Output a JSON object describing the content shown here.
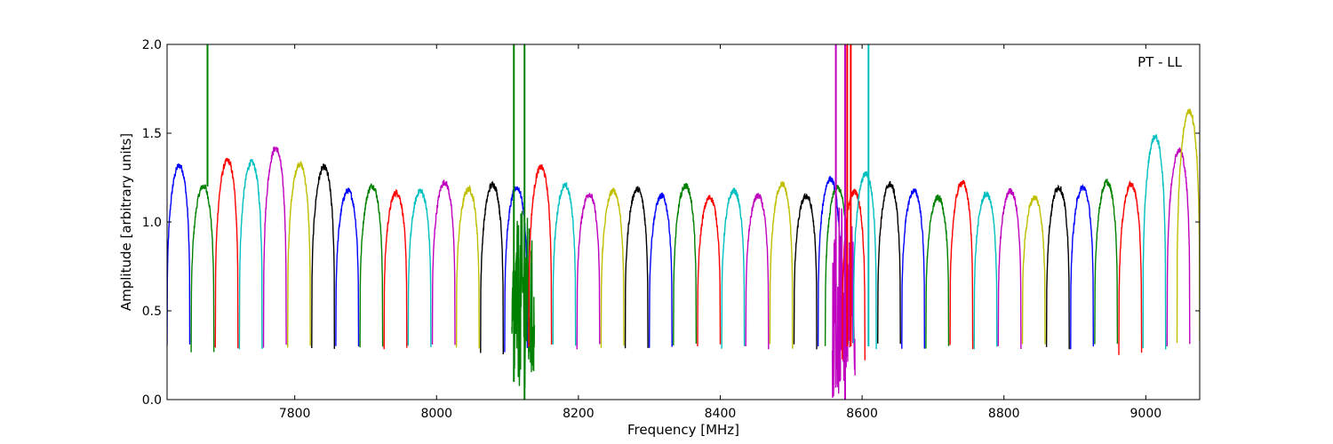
{
  "chart_data": {
    "type": "line",
    "annotation": "PT - LL",
    "xlabel": "Frequency [MHz]",
    "ylabel": "Amplitude [arbitrary units]",
    "xlim": [
      7620,
      9076
    ],
    "ylim": [
      0.0,
      2.0
    ],
    "xticks": [
      7800,
      8000,
      8200,
      8400,
      8600,
      8800,
      9000
    ],
    "xtick_labels": [
      "7800",
      "8000",
      "8200",
      "8400",
      "8600",
      "8800",
      "9000"
    ],
    "yticks": [
      0.0,
      0.5,
      1.0,
      1.5,
      2.0
    ],
    "ytick_labels": [
      "0.0",
      "0.5",
      "1.0",
      "1.5",
      "2.0"
    ],
    "grid": false,
    "legend": "none",
    "color_cycle": [
      "#0000ff",
      "#008000",
      "#ff0000",
      "#00bfbf",
      "#bf00bf",
      "#bfbf00",
      "#000000"
    ],
    "channel_width_mhz": 32,
    "series": [
      {
        "band_mhz": [
          7620,
          7652
        ],
        "color": "#0000ff",
        "min": 0.3,
        "peak": 1.37
      },
      {
        "band_mhz": [
          7654,
          7686
        ],
        "color": "#008000",
        "min": 0.26,
        "peak": 1.25
      },
      {
        "band_mhz": [
          7688,
          7720
        ],
        "color": "#ff0000",
        "min": 0.3,
        "peak": 1.4
      },
      {
        "band_mhz": [
          7722,
          7754
        ],
        "color": "#00bfbf",
        "min": 0.3,
        "peak": 1.39
      },
      {
        "band_mhz": [
          7756,
          7788
        ],
        "color": "#bf00bf",
        "min": 0.3,
        "peak": 1.47
      },
      {
        "band_mhz": [
          7790,
          7822
        ],
        "color": "#bfbf00",
        "min": 0.3,
        "peak": 1.38
      },
      {
        "band_mhz": [
          7824,
          7856
        ],
        "color": "#000000",
        "min": 0.3,
        "peak": 1.36
      },
      {
        "band_mhz": [
          7858,
          7890
        ],
        "color": "#0000ff",
        "min": 0.3,
        "peak": 1.22
      },
      {
        "band_mhz": [
          7892,
          7924
        ],
        "color": "#008000",
        "min": 0.3,
        "peak": 1.25
      },
      {
        "band_mhz": [
          7926,
          7958
        ],
        "color": "#ff0000",
        "min": 0.3,
        "peak": 1.21
      },
      {
        "band_mhz": [
          7960,
          7992
        ],
        "color": "#00bfbf",
        "min": 0.3,
        "peak": 1.22
      },
      {
        "band_mhz": [
          7994,
          8026
        ],
        "color": "#bf00bf",
        "min": 0.3,
        "peak": 1.27
      },
      {
        "band_mhz": [
          8028,
          8060
        ],
        "color": "#bfbf00",
        "min": 0.3,
        "peak": 1.23
      },
      {
        "band_mhz": [
          8062,
          8094
        ],
        "color": "#000000",
        "min": 0.26,
        "peak": 1.26
      },
      {
        "band_mhz": [
          8096,
          8128
        ],
        "color": "#0000ff",
        "min": 0.28,
        "peak": 1.24
      },
      {
        "band_mhz": [
          8106,
          8138
        ],
        "color": "#008000",
        "min": 0.06,
        "peak": 1.07
      },
      {
        "band_mhz": [
          8130,
          8162
        ],
        "color": "#ff0000",
        "min": 0.3,
        "peak": 1.36
      },
      {
        "band_mhz": [
          8164,
          8196
        ],
        "color": "#00bfbf",
        "min": 0.3,
        "peak": 1.25
      },
      {
        "band_mhz": [
          8198,
          8230
        ],
        "color": "#bf00bf",
        "min": 0.3,
        "peak": 1.2
      },
      {
        "band_mhz": [
          8232,
          8264
        ],
        "color": "#bfbf00",
        "min": 0.3,
        "peak": 1.22
      },
      {
        "band_mhz": [
          8266,
          8298
        ],
        "color": "#000000",
        "min": 0.3,
        "peak": 1.23
      },
      {
        "band_mhz": [
          8300,
          8332
        ],
        "color": "#0000ff",
        "min": 0.3,
        "peak": 1.19
      },
      {
        "band_mhz": [
          8334,
          8366
        ],
        "color": "#008000",
        "min": 0.3,
        "peak": 1.25
      },
      {
        "band_mhz": [
          8368,
          8400
        ],
        "color": "#ff0000",
        "min": 0.3,
        "peak": 1.18
      },
      {
        "band_mhz": [
          8402,
          8434
        ],
        "color": "#00bfbf",
        "min": 0.3,
        "peak": 1.22
      },
      {
        "band_mhz": [
          8436,
          8468
        ],
        "color": "#bf00bf",
        "min": 0.3,
        "peak": 1.19
      },
      {
        "band_mhz": [
          8470,
          8502
        ],
        "color": "#bfbf00",
        "min": 0.3,
        "peak": 1.26
      },
      {
        "band_mhz": [
          8504,
          8536
        ],
        "color": "#000000",
        "min": 0.3,
        "peak": 1.19
      },
      {
        "band_mhz": [
          8538,
          8570
        ],
        "color": "#0000ff",
        "min": 0.3,
        "peak": 1.29
      },
      {
        "band_mhz": [
          8548,
          8580
        ],
        "color": "#008000",
        "min": 0.3,
        "peak": 1.24
      },
      {
        "band_mhz": [
          8558,
          8590
        ],
        "color": "#bf00bf",
        "min": 0.0,
        "peak": 1.15
      },
      {
        "band_mhz": [
          8572,
          8604
        ],
        "color": "#ff0000",
        "min": 0.22,
        "peak": 1.22
      },
      {
        "band_mhz": [
          8588,
          8620
        ],
        "color": "#00bfbf",
        "min": 0.3,
        "peak": 1.32
      },
      {
        "band_mhz": [
          8622,
          8654
        ],
        "color": "#000000",
        "min": 0.3,
        "peak": 1.26
      },
      {
        "band_mhz": [
          8656,
          8688
        ],
        "color": "#0000ff",
        "min": 0.3,
        "peak": 1.22
      },
      {
        "band_mhz": [
          8690,
          8722
        ],
        "color": "#008000",
        "min": 0.3,
        "peak": 1.18
      },
      {
        "band_mhz": [
          8724,
          8756
        ],
        "color": "#ff0000",
        "min": 0.3,
        "peak": 1.27
      },
      {
        "band_mhz": [
          8758,
          8790
        ],
        "color": "#00bfbf",
        "min": 0.3,
        "peak": 1.2
      },
      {
        "band_mhz": [
          8792,
          8824
        ],
        "color": "#bf00bf",
        "min": 0.3,
        "peak": 1.22
      },
      {
        "band_mhz": [
          8826,
          8858
        ],
        "color": "#bfbf00",
        "min": 0.3,
        "peak": 1.18
      },
      {
        "band_mhz": [
          8860,
          8892
        ],
        "color": "#000000",
        "min": 0.3,
        "peak": 1.24
      },
      {
        "band_mhz": [
          8894,
          8926
        ],
        "color": "#0000ff",
        "min": 0.3,
        "peak": 1.24
      },
      {
        "band_mhz": [
          8928,
          8960
        ],
        "color": "#008000",
        "min": 0.3,
        "peak": 1.27
      },
      {
        "band_mhz": [
          8962,
          8994
        ],
        "color": "#ff0000",
        "min": 0.26,
        "peak": 1.26
      },
      {
        "band_mhz": [
          8996,
          9028
        ],
        "color": "#00bfbf",
        "min": 0.3,
        "peak": 1.54
      },
      {
        "band_mhz": [
          9030,
          9062
        ],
        "color": "#bf00bf",
        "min": 0.3,
        "peak": 1.46
      },
      {
        "band_mhz": [
          9044,
          9076
        ],
        "color": "#bfbf00",
        "min": 0.33,
        "peak": 1.69
      }
    ],
    "spikes": [
      {
        "x": 7677,
        "color": "#008000",
        "from": 1.2,
        "to": 2.0
      },
      {
        "x": 8109,
        "color": "#008000",
        "from": 0.1,
        "to": 2.0
      },
      {
        "x": 8124,
        "color": "#008000",
        "from": 0.0,
        "to": 2.0
      },
      {
        "x": 8563,
        "color": "#bf00bf",
        "from": 0.2,
        "to": 2.0
      },
      {
        "x": 8576,
        "color": "#bf00bf",
        "from": 0.0,
        "to": 2.0
      },
      {
        "x": 8579,
        "color": "#ff0000",
        "from": 0.3,
        "to": 2.0
      },
      {
        "x": 8584,
        "color": "#ff0000",
        "from": 0.3,
        "to": 2.0
      },
      {
        "x": 8609,
        "color": "#00bfbf",
        "from": 0.3,
        "to": 2.0
      }
    ]
  }
}
